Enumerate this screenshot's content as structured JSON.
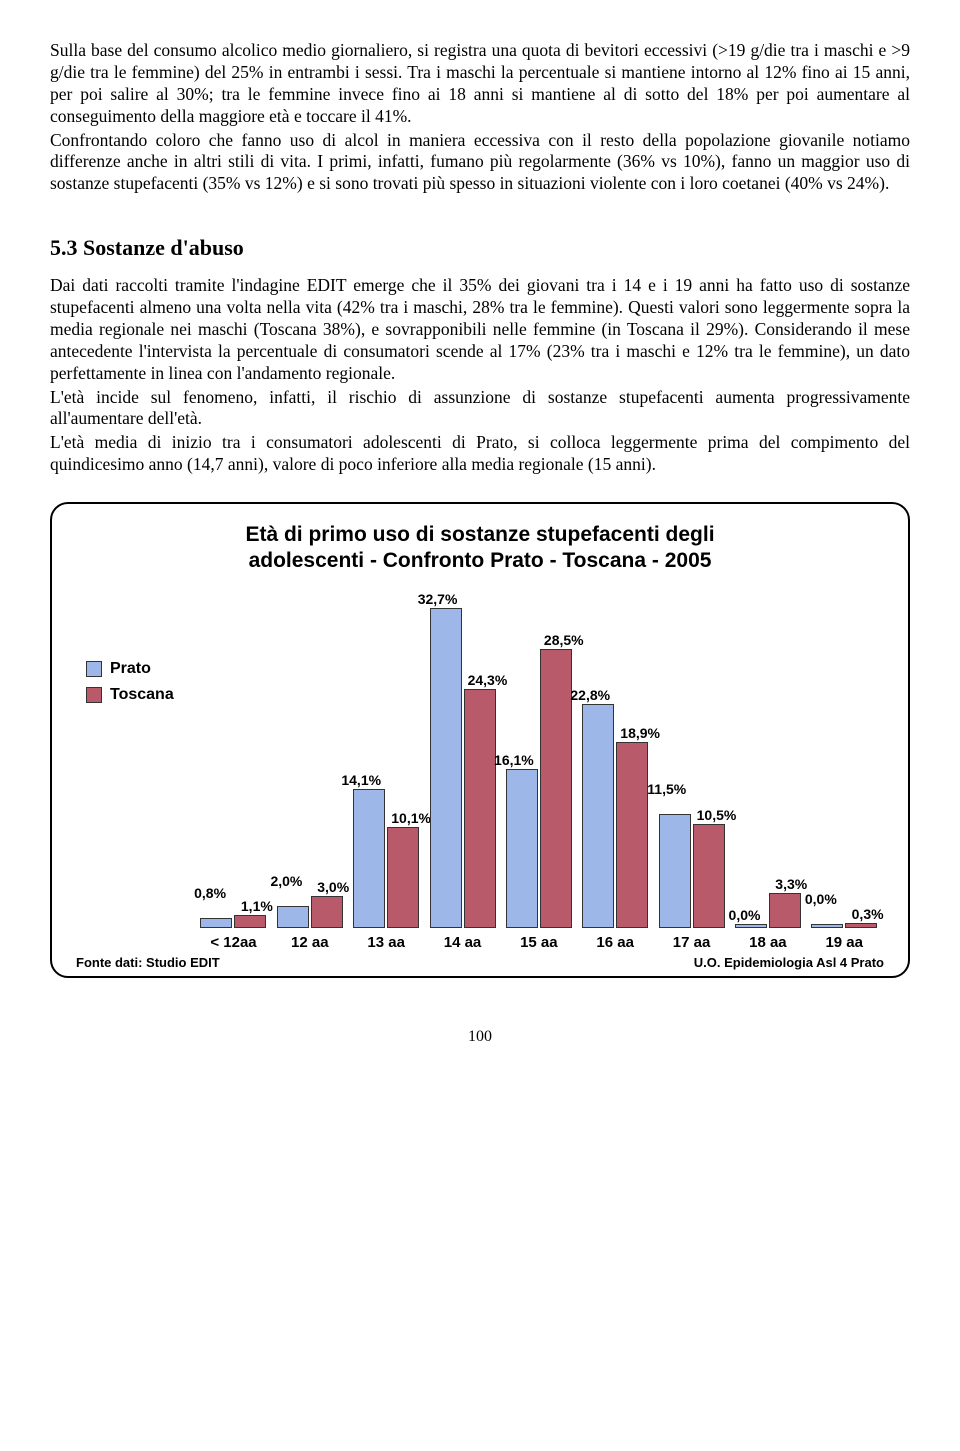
{
  "body": {
    "para1": "Sulla base del consumo alcolico medio giornaliero, si registra una quota di bevitori eccessivi (>19 g/die tra i maschi e >9 g/die tra le femmine) del 25% in entrambi i sessi. Tra i maschi la percentuale si mantiene intorno al 12% fino ai 15 anni, per poi salire al 30%; tra le femmine invece fino ai 18 anni si mantiene al di sotto del 18% per poi aumentare al conseguimento della maggiore età e toccare il 41%.",
    "para2": "Confrontando coloro che fanno uso di alcol in maniera eccessiva con il resto della popolazione giovanile notiamo differenze anche in altri stili di vita. I primi, infatti, fumano più regolarmente (36% vs 10%), fanno un maggior uso di sostanze stupefacenti (35% vs 12%) e si sono trovati più spesso in situazioni violente con i loro coetanei (40% vs 24%).",
    "heading": "5.3 Sostanze d'abuso",
    "para3": "Dai dati raccolti tramite l'indagine EDIT emerge che il 35% dei giovani tra i 14 e i 19 anni ha fatto uso di sostanze stupefacenti almeno una volta nella vita (42% tra i maschi, 28% tra le femmine). Questi valori sono leggermente sopra la media regionale nei maschi (Toscana 38%), e sovrapponibili nelle femmine (in Toscana il 29%). Considerando il mese antecedente l'intervista la percentuale di consumatori scende al 17% (23% tra i maschi e 12% tra le femmine), un dato perfettamente in linea con l'andamento regionale.",
    "para4": "L'età incide sul fenomeno, infatti, il rischio di assunzione di sostanze stupefacenti aumenta progressivamente all'aumentare dell'età.",
    "para5": "L'età media di inizio tra i consumatori adolescenti di Prato, si colloca leggermente prima del compimento del quindicesimo anno (14,7 anni), valore di poco inferiore alla media regionale (15 anni)."
  },
  "chart": {
    "title1": "Età di primo uso di sostanze stupefacenti degli",
    "title2": "adolescenti - Confronto Prato - Toscana - 2005",
    "type": "bar",
    "ymax": 35,
    "colors": {
      "prato": "#9db8e8",
      "toscana": "#b85a6a"
    },
    "legend": [
      {
        "label": "Prato",
        "colorKey": "prato"
      },
      {
        "label": "Toscana",
        "colorKey": "toscana"
      }
    ],
    "categories": [
      "< 12aa",
      "12 aa",
      "13 aa",
      "14 aa",
      "15 aa",
      "16 aa",
      "17 aa",
      "18 aa",
      "19 aa"
    ],
    "series": {
      "prato": [
        0.8,
        2.0,
        14.1,
        32.7,
        16.1,
        22.8,
        11.5,
        0.0,
        0.0
      ],
      "toscana": [
        1.1,
        3.0,
        10.1,
        24.3,
        28.5,
        18.9,
        10.5,
        3.3,
        0.3
      ]
    },
    "labels": {
      "prato": [
        "0,8%",
        "2,0%",
        "14,1%",
        "32,7%",
        "16,1%",
        "22,8%",
        "11,5%",
        "0,0%",
        "0,0%"
      ],
      "toscana": [
        "1,1%",
        "3,0%",
        "10,1%",
        "24,3%",
        "28,5%",
        "18,9%",
        "10,5%",
        "3,3%",
        "0,3%"
      ]
    },
    "footer_left": "Fonte dati: Studio EDIT",
    "footer_right": "U.O. Epidemiologia Asl 4 Prato"
  },
  "page_num": "100"
}
